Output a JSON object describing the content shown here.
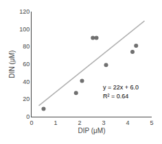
{
  "chart_data": {
    "type": "scatter",
    "xlabel": "DIP (μM)",
    "ylabel": "DIN (μM)",
    "series": [
      {
        "type": "line",
        "color": "#b0b0b0",
        "x": [
          0.3,
          4.7
        ],
        "values": [
          12.6,
          109.4
        ]
      },
      {
        "type": "scatter",
        "color": "#707070",
        "x": [
          0.5,
          1.85,
          2.1,
          2.55,
          2.7,
          3.1,
          4.2,
          4.35
        ],
        "values": [
          9,
          27,
          41,
          90,
          90,
          59,
          74,
          81
        ]
      }
    ],
    "annotations": [
      {
        "text": "y = 22x + 6.0",
        "x": 2.9,
        "y": 28
      },
      {
        "text": "R² = 0.64",
        "x": 2.9,
        "y": 18
      }
    ],
    "xlim": [
      0.0,
      5.0
    ],
    "ylim": [
      0,
      120
    ],
    "xticks": [
      0.0,
      1.0,
      2.0,
      3.0,
      4.0,
      5.0
    ],
    "yticks": [
      0,
      20,
      40,
      60,
      80,
      100,
      120
    ],
    "grid": false
  }
}
